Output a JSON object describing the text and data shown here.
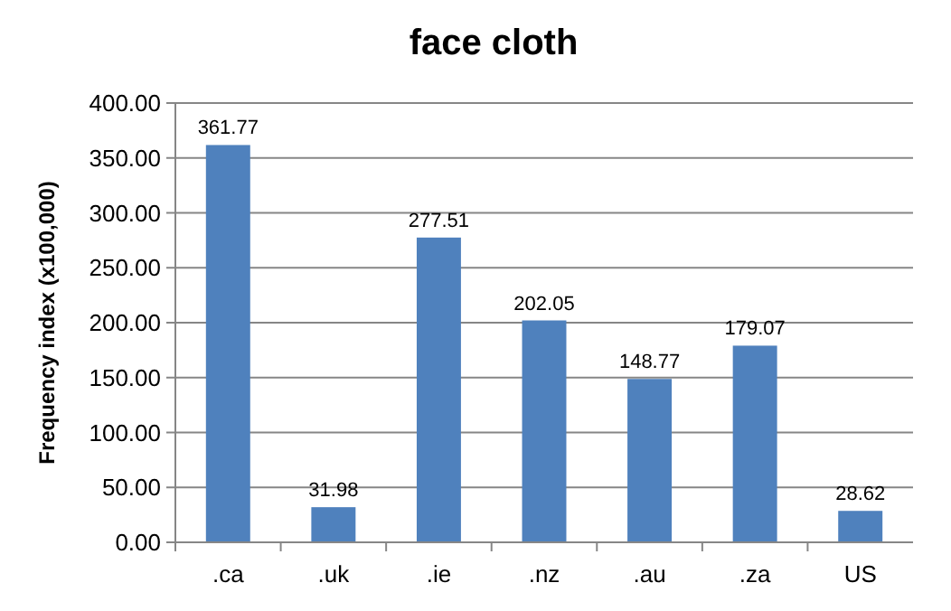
{
  "chart_data": {
    "type": "bar",
    "title": "face cloth",
    "ylabel": "Frequency index (x100,000)",
    "categories": [
      ".ca",
      ".uk",
      ".ie",
      ".nz",
      ".au",
      ".za",
      "US"
    ],
    "values": [
      361.77,
      31.98,
      277.51,
      202.05,
      148.77,
      179.07,
      28.62
    ],
    "color": "#4f81bd",
    "ylim": [
      0,
      400
    ],
    "yticks": [
      {
        "value": 0,
        "label": "0.00"
      },
      {
        "value": 50,
        "label": "50.00"
      },
      {
        "value": 100,
        "label": "100.00"
      },
      {
        "value": 150,
        "label": "150.00"
      },
      {
        "value": 200,
        "label": "200.00"
      },
      {
        "value": 250,
        "label": "250.00"
      },
      {
        "value": 300,
        "label": "300.00"
      },
      {
        "value": 350,
        "label": "350.00"
      },
      {
        "value": 400,
        "label": "400.00"
      }
    ],
    "grid": true,
    "data_labels": true
  }
}
